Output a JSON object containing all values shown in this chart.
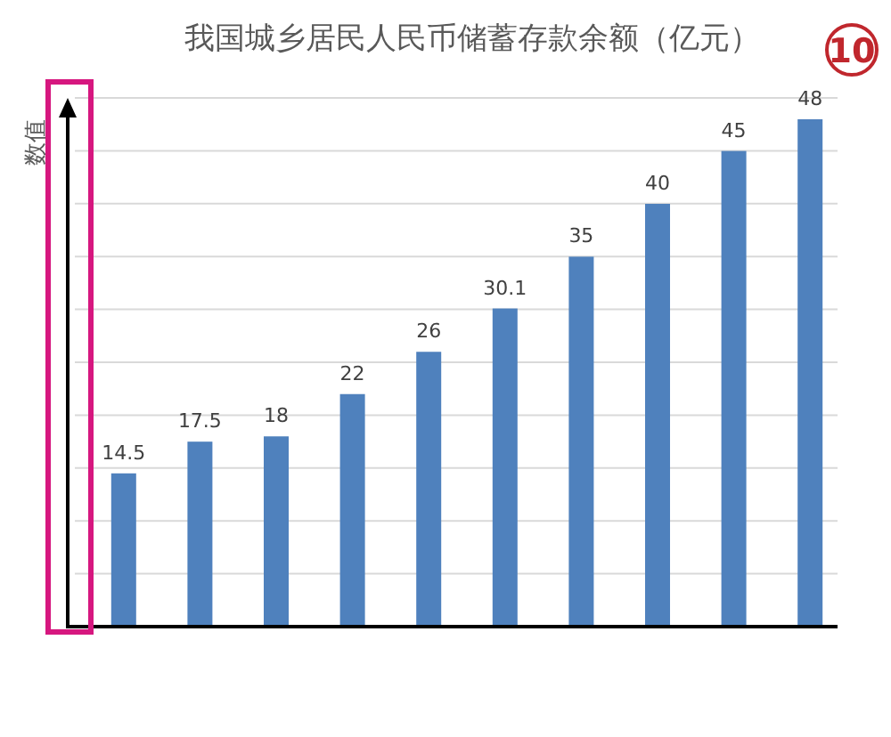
{
  "chart_data": {
    "type": "bar",
    "title": "我国城乡居民人民币储蓄存款余额（亿元）",
    "ylabel": "数值",
    "categories": [
      null,
      null,
      null,
      null,
      null,
      null,
      null,
      null,
      null,
      null
    ],
    "values": [
      14.5,
      17.5,
      18,
      22,
      26,
      30.1,
      35,
      40,
      45,
      48
    ],
    "color": "#4f81bd",
    "data_labels": true,
    "grid": "y",
    "annotations": [
      "10"
    ]
  }
}
